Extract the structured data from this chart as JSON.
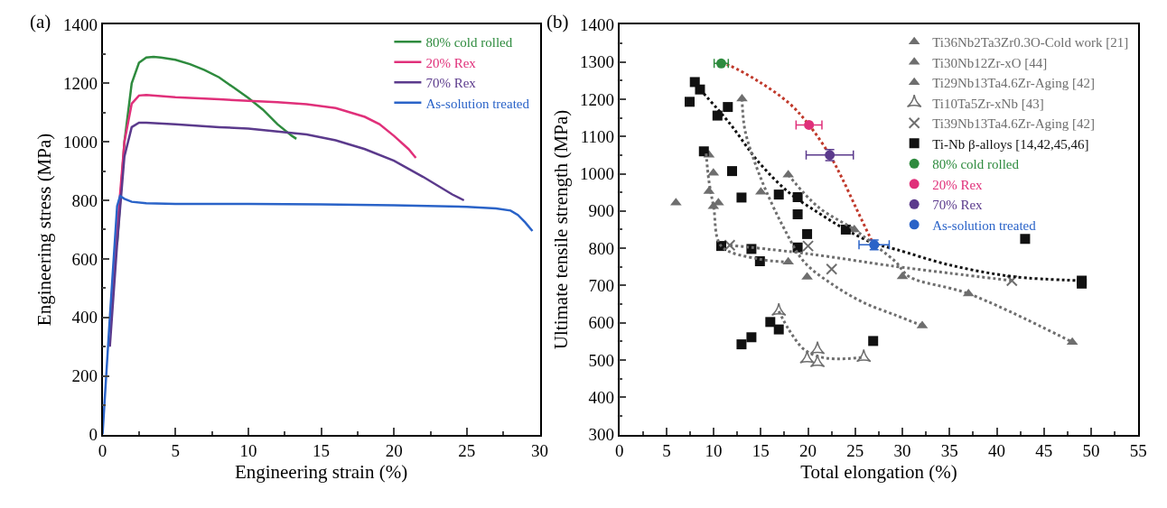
{
  "chart_data": [
    {
      "type": "line",
      "annotations": [
        "(a)"
      ],
      "xlabel": "Engineering strain (%)",
      "ylabel": "Engineering stress (MPa)",
      "xlim": [
        0,
        30
      ],
      "xticks": [
        0,
        5,
        10,
        15,
        20,
        25,
        30
      ],
      "ylim": [
        0,
        1400
      ],
      "yticks": [
        0,
        200,
        400,
        600,
        800,
        1000,
        1200,
        1400
      ],
      "legend": "top right",
      "series": [
        {
          "name": "80% cold rolled",
          "color": "#2e8b3e",
          "x": [
            1,
            1.5,
            2,
            2.5,
            3,
            3.5,
            4,
            5,
            6,
            7,
            8,
            9,
            10,
            11,
            12,
            13,
            13.3
          ],
          "values": [
            650,
            1000,
            1200,
            1270,
            1288,
            1290,
            1288,
            1280,
            1265,
            1245,
            1220,
            1185,
            1150,
            1110,
            1060,
            1020,
            1010
          ]
        },
        {
          "name": "20% Rex",
          "color": "#e0307a",
          "x": [
            0.5,
            1,
            1.5,
            2,
            2.5,
            3,
            5,
            8,
            10,
            12,
            14,
            16,
            18,
            19,
            20,
            21,
            21.5
          ],
          "values": [
            350,
            700,
            1000,
            1130,
            1158,
            1160,
            1152,
            1145,
            1140,
            1135,
            1128,
            1115,
            1085,
            1060,
            1020,
            975,
            945
          ]
        },
        {
          "name": "70% Rex",
          "color": "#5b3a8c",
          "x": [
            0.5,
            1,
            1.5,
            2,
            2.5,
            3,
            5,
            8,
            10,
            12,
            14,
            16,
            18,
            20,
            22,
            24,
            24.8
          ],
          "values": [
            300,
            650,
            950,
            1050,
            1065,
            1065,
            1060,
            1050,
            1045,
            1035,
            1025,
            1005,
            975,
            935,
            880,
            820,
            800
          ]
        },
        {
          "name": "As-solution treated",
          "color": "#2a63c8",
          "x": [
            0,
            0.5,
            1,
            1.2,
            1.5,
            2,
            3,
            5,
            10,
            15,
            20,
            25,
            27,
            28,
            28.5,
            29,
            29.5
          ],
          "values": [
            0,
            400,
            780,
            815,
            805,
            795,
            790,
            788,
            788,
            786,
            783,
            778,
            772,
            765,
            750,
            725,
            695
          ]
        }
      ]
    },
    {
      "type": "scatter",
      "annotations": [
        "(b)"
      ],
      "xlabel": "Total elongation (%)",
      "ylabel": "Ultimate tensile strength (MPa)",
      "xlim": [
        0,
        55
      ],
      "xticks": [
        0,
        5,
        10,
        15,
        20,
        25,
        30,
        35,
        40,
        45,
        50,
        55
      ],
      "ylim": [
        300,
        1400
      ],
      "yticks": [
        300,
        400,
        500,
        600,
        700,
        800,
        900,
        1000,
        1100,
        1200,
        1300,
        1400
      ],
      "legend": "top right",
      "series": [
        {
          "name": "Ti36Nb2Ta3Zr0.3O-Cold work [21]",
          "color": "#6e6e6e",
          "marker": "triangle",
          "x": [
            9.5,
            9.97,
            9.5,
            10.5,
            9.97,
            17.9
          ],
          "values": [
            1050,
            1002,
            953,
            922,
            912,
            763
          ]
        },
        {
          "name": "Ti30Nb12Zr-xO [44]",
          "color": "#6e6e6e",
          "marker": "triangle",
          "x": [
            19.9,
            24.9,
            30.0,
            37.0,
            48.0
          ],
          "values": [
            723,
            850,
            724,
            678,
            548
          ]
        },
        {
          "name": "Ti29Nb13Ta4.6Zr-Aging [42]",
          "color": "#6e6e6e",
          "marker": "triangle",
          "x": [
            6.0,
            13.0,
            15.0,
            17.9,
            32.1
          ],
          "values": [
            922,
            1201,
            951,
            997,
            592
          ]
        },
        {
          "name": "Ti10Ta5Zr-xNb [43]",
          "color": "#6e6e6e",
          "marker": "star",
          "x": [
            16.9,
            21.0,
            19.9,
            21.0,
            25.9
          ],
          "values": [
            631,
            528,
            503,
            493,
            507
          ]
        },
        {
          "name": "Ti39Nb13Ta4.6Zr-Aging [42]",
          "color": "#6e6e6e",
          "marker": "cross",
          "x": [
            11.7,
            20.0,
            22.5,
            41.6
          ],
          "values": [
            808,
            806,
            744,
            713
          ]
        },
        {
          "name": "Ti-Nb β-alloys [14,42,45,46]",
          "color": "#111111",
          "marker": "square",
          "x": [
            8.0,
            8.55,
            7.45,
            11.5,
            10.4,
            8.96,
            11.95,
            12.95,
            16.9,
            18.9,
            18.9,
            19.9,
            24.0,
            10.8,
            14.0,
            14.9,
            18.9,
            16.0,
            16.9,
            14.0,
            12.95,
            26.9,
            43.0,
            49.0,
            49.0
          ],
          "values": [
            1246,
            1226,
            1193,
            1179,
            1156,
            1060,
            1007,
            936,
            944,
            937,
            891,
            838,
            850,
            806,
            798,
            765,
            802,
            602,
            582,
            561,
            542,
            551,
            825,
            713,
            705
          ]
        },
        {
          "type": "line",
          "color": "#c0392b",
          "line_style": "dotted",
          "x": [
            10.8,
            11.7,
            14.8,
            18.0,
            20.1,
            22.3,
            23.6,
            25.2,
            26.5,
            26.9
          ],
          "values": [
            1296,
            1290,
            1247,
            1189,
            1131,
            1050,
            988,
            902,
            833,
            813
          ]
        },
        {
          "type": "line",
          "color": "#111111",
          "line_style": "dotted",
          "x": [
            8.55,
            11.7,
            14.8,
            18.0,
            21.1,
            24.0,
            27.0,
            29.3,
            35.0,
            41.7,
            49.0
          ],
          "values": [
            1226,
            1135,
            1030,
            949,
            895,
            850,
            813,
            797,
            755,
            724,
            713
          ]
        },
        {
          "type": "line",
          "color": "#6e6e6e",
          "line_style": "dotted",
          "x": [
            9.2,
            9.5,
            10.0,
            10.8,
            14.8,
            17.9
          ],
          "values": [
            1054,
            980,
            910,
            806,
            771,
            763
          ]
        },
        {
          "type": "line",
          "color": "#6e6e6e",
          "line_style": "dotted",
          "x": [
            13.0,
            13.3,
            14.2,
            15.5,
            17.4,
            19.6,
            22.7,
            25.9,
            29.3,
            32.1
          ],
          "values": [
            1201,
            1119,
            1042,
            957,
            856,
            763,
            701,
            654,
            620,
            592
          ]
        },
        {
          "type": "line",
          "color": "#6e6e6e",
          "line_style": "dotted",
          "x": [
            17.9,
            21.1,
            24.9,
            27.4,
            29.3,
            30.7,
            37.0,
            48.0
          ],
          "values": [
            997,
            910,
            850,
            802,
            763,
            724,
            678,
            548
          ]
        },
        {
          "type": "line",
          "color": "#6e6e6e",
          "line_style": "dotted",
          "x": [
            11.7,
            20.0,
            29.3,
            35.0,
            41.6
          ],
          "values": [
            808,
            785,
            751,
            733,
            713
          ]
        },
        {
          "type": "line",
          "color": "#6e6e6e",
          "line_style": "dotted",
          "x": [
            16.9,
            18.0,
            19.5,
            21.0,
            23.0,
            25.9
          ],
          "values": [
            631,
            580,
            530,
            510,
            503,
            507
          ]
        },
        {
          "name": "80% cold rolled",
          "color": "#2e8b3e",
          "x": [
            10.8
          ],
          "values": [
            1296
          ],
          "xerrors": [
            0.75
          ]
        },
        {
          "name": "20% Rex",
          "color": "#e0307a",
          "x": [
            20.1
          ],
          "values": [
            1131
          ],
          "xerrors": [
            1.37
          ]
        },
        {
          "name": "70% Rex",
          "color": "#5b3a8c",
          "x": [
            22.3
          ],
          "values": [
            1050
          ],
          "xerrors": [
            2.5
          ],
          "errors": [
            15
          ]
        },
        {
          "name": "As-solution treated",
          "color": "#2a63c8",
          "x": [
            27.0
          ],
          "values": [
            809
          ],
          "xerrors": [
            1.6
          ],
          "errors": [
            13
          ]
        }
      ]
    }
  ]
}
